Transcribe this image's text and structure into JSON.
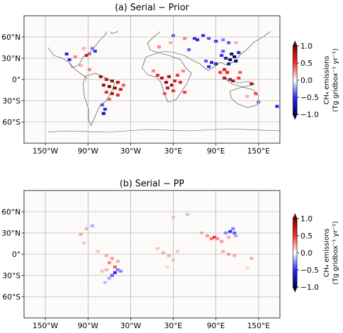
{
  "chart_data": [
    {
      "type": "heatmap",
      "title": "(a) Serial − Prior",
      "projection": "equirectangular",
      "x_ticks": [
        -150,
        -90,
        -30,
        30,
        90,
        150
      ],
      "x_tick_labels": [
        "150°W",
        "90°W",
        "30°W",
        "30°E",
        "90°E",
        "150°E"
      ],
      "y_ticks": [
        60,
        30,
        0,
        -30,
        -60
      ],
      "y_tick_labels": [
        "60°N",
        "30°N",
        "0°",
        "30°S",
        "60°S"
      ],
      "xlim": [
        -180,
        180
      ],
      "ylim": [
        -90,
        90
      ],
      "grid": true,
      "colorbar": {
        "label": "CH₄ emissions",
        "units": "(Tg gridbox⁻¹ yr⁻¹)",
        "range": [
          -1.0,
          1.0
        ],
        "ticks": [
          1.0,
          0.5,
          0.0,
          -0.5,
          -1.0
        ],
        "tick_labels": [
          "1.0",
          "0.5",
          "0.0",
          "−0.5",
          "−1.0"
        ],
        "extend": "both",
        "cmap": "seismic"
      },
      "cells": [
        {
          "lon": -120,
          "lat": 36,
          "value": -0.6
        },
        {
          "lon": -116,
          "lat": 28,
          "value": -0.5
        },
        {
          "lon": -108,
          "lat": 32,
          "value": 0.3
        },
        {
          "lon": -92,
          "lat": 34,
          "value": 0.7
        },
        {
          "lon": -88,
          "lat": 36,
          "value": 0.4
        },
        {
          "lon": -80,
          "lat": 40,
          "value": -0.5
        },
        {
          "lon": -84,
          "lat": 44,
          "value": -0.3
        },
        {
          "lon": -96,
          "lat": 44,
          "value": 0.2
        },
        {
          "lon": -100,
          "lat": 20,
          "value": 0.2
        },
        {
          "lon": -88,
          "lat": 14,
          "value": 0.3
        },
        {
          "lon": -72,
          "lat": 4,
          "value": 0.8
        },
        {
          "lon": -64,
          "lat": 0,
          "value": 0.9
        },
        {
          "lon": -56,
          "lat": -2,
          "value": 0.9
        },
        {
          "lon": -48,
          "lat": -4,
          "value": 0.8
        },
        {
          "lon": -68,
          "lat": -8,
          "value": 0.9
        },
        {
          "lon": -60,
          "lat": -10,
          "value": 1.0
        },
        {
          "lon": -52,
          "lat": -12,
          "value": 0.9
        },
        {
          "lon": -44,
          "lat": -14,
          "value": 0.7
        },
        {
          "lon": -64,
          "lat": -18,
          "value": 0.6
        },
        {
          "lon": -56,
          "lat": -20,
          "value": 0.8
        },
        {
          "lon": -48,
          "lat": -22,
          "value": 0.6
        },
        {
          "lon": -60,
          "lat": -28,
          "value": 0.4
        },
        {
          "lon": -70,
          "lat": -36,
          "value": -0.4
        },
        {
          "lon": -66,
          "lat": -42,
          "value": -0.6
        },
        {
          "lon": -68,
          "lat": -48,
          "value": -0.8
        },
        {
          "lon": -40,
          "lat": -8,
          "value": 0.4
        },
        {
          "lon": 8,
          "lat": 6,
          "value": 0.6
        },
        {
          "lon": 14,
          "lat": 2,
          "value": 0.8
        },
        {
          "lon": 20,
          "lat": -4,
          "value": 0.9
        },
        {
          "lon": 24,
          "lat": 4,
          "value": 0.8
        },
        {
          "lon": 28,
          "lat": -8,
          "value": 0.9
        },
        {
          "lon": 22,
          "lat": -12,
          "value": 0.8
        },
        {
          "lon": 32,
          "lat": -2,
          "value": 0.7
        },
        {
          "lon": 30,
          "lat": -16,
          "value": 0.6
        },
        {
          "lon": 36,
          "lat": 6,
          "value": 0.5
        },
        {
          "lon": 40,
          "lat": -4,
          "value": 0.6
        },
        {
          "lon": 18,
          "lat": -20,
          "value": 0.4
        },
        {
          "lon": 2,
          "lat": 12,
          "value": 0.3
        },
        {
          "lon": 44,
          "lat": 12,
          "value": 0.3
        },
        {
          "lon": 46,
          "lat": -18,
          "value": 0.5
        },
        {
          "lon": 10,
          "lat": 46,
          "value": 0.3
        },
        {
          "lon": 26,
          "lat": 52,
          "value": 0.2
        },
        {
          "lon": 30,
          "lat": 62,
          "value": -0.4
        },
        {
          "lon": 46,
          "lat": 58,
          "value": 0.3
        },
        {
          "lon": 52,
          "lat": 42,
          "value": -0.4
        },
        {
          "lon": 60,
          "lat": 58,
          "value": -0.5
        },
        {
          "lon": 64,
          "lat": 56,
          "value": -0.6
        },
        {
          "lon": 72,
          "lat": 62,
          "value": -0.5
        },
        {
          "lon": 80,
          "lat": 58,
          "value": -0.4
        },
        {
          "lon": 90,
          "lat": 54,
          "value": -0.5
        },
        {
          "lon": 100,
          "lat": 56,
          "value": -0.3
        },
        {
          "lon": 108,
          "lat": 52,
          "value": -0.4
        },
        {
          "lon": 118,
          "lat": 52,
          "value": 0.2
        },
        {
          "lon": 76,
          "lat": 26,
          "value": -0.4
        },
        {
          "lon": 84,
          "lat": 24,
          "value": -0.6
        },
        {
          "lon": 90,
          "lat": 22,
          "value": -0.8
        },
        {
          "lon": 80,
          "lat": 18,
          "value": -0.5
        },
        {
          "lon": 98,
          "lat": 34,
          "value": -0.5
        },
        {
          "lon": 104,
          "lat": 30,
          "value": -0.9
        },
        {
          "lon": 110,
          "lat": 28,
          "value": -1.0
        },
        {
          "lon": 116,
          "lat": 32,
          "value": -1.0
        },
        {
          "lon": 112,
          "lat": 36,
          "value": -0.8
        },
        {
          "lon": 118,
          "lat": 26,
          "value": -0.9
        },
        {
          "lon": 108,
          "lat": 22,
          "value": -0.8
        },
        {
          "lon": 122,
          "lat": 38,
          "value": -0.6
        },
        {
          "lon": 100,
          "lat": 40,
          "value": -0.4
        },
        {
          "lon": 96,
          "lat": 10,
          "value": 0.5
        },
        {
          "lon": 102,
          "lat": 14,
          "value": 0.7
        },
        {
          "lon": 106,
          "lat": 10,
          "value": 0.6
        },
        {
          "lon": 102,
          "lat": 2,
          "value": 0.8
        },
        {
          "lon": 110,
          "lat": 0,
          "value": 0.9
        },
        {
          "lon": 114,
          "lat": -2,
          "value": 0.8
        },
        {
          "lon": 122,
          "lat": 2,
          "value": 0.5
        },
        {
          "lon": 124,
          "lat": 10,
          "value": 0.4
        },
        {
          "lon": 140,
          "lat": -6,
          "value": 0.7
        },
        {
          "lon": 146,
          "lat": -20,
          "value": 0.4
        },
        {
          "lon": 134,
          "lat": -24,
          "value": 0.2
        },
        {
          "lon": 150,
          "lat": -32,
          "value": -0.3
        },
        {
          "lon": 176,
          "lat": -38,
          "value": -0.6
        }
      ]
    },
    {
      "type": "heatmap",
      "title": "(b) Serial − PP",
      "projection": "equirectangular",
      "x_ticks": [
        -150,
        -90,
        -30,
        30,
        90,
        150
      ],
      "x_tick_labels": [
        "150°W",
        "90°W",
        "30°W",
        "30°E",
        "90°E",
        "150°E"
      ],
      "y_ticks": [
        60,
        30,
        0,
        -30,
        -60
      ],
      "y_tick_labels": [
        "60°N",
        "30°N",
        "0°",
        "30°S",
        "60°S"
      ],
      "xlim": [
        -180,
        180
      ],
      "ylim": [
        -90,
        90
      ],
      "grid": true,
      "colorbar": {
        "label": "CH₄ emissions",
        "units": "(Tg gridbox⁻¹ yr⁻¹)",
        "range": [
          -1.0,
          1.0
        ],
        "ticks": [
          1.0,
          0.5,
          0.0,
          -0.5,
          -1.0
        ],
        "tick_labels": [
          "1.0",
          "0.5",
          "0.0",
          "−0.5",
          "−1.0"
        ],
        "extend": "both",
        "cmap": "seismic"
      },
      "cells": [
        {
          "lon": -92,
          "lat": 36,
          "value": 0.2
        },
        {
          "lon": -84,
          "lat": 40,
          "value": -0.2
        },
        {
          "lon": -100,
          "lat": 28,
          "value": 0.2
        },
        {
          "lon": -96,
          "lat": 16,
          "value": 0.15
        },
        {
          "lon": -76,
          "lat": 4,
          "value": 0.15
        },
        {
          "lon": -64,
          "lat": -2,
          "value": 0.2
        },
        {
          "lon": -56,
          "lat": -6,
          "value": 0.25
        },
        {
          "lon": -48,
          "lat": -10,
          "value": 0.2
        },
        {
          "lon": -60,
          "lat": -12,
          "value": 0.3
        },
        {
          "lon": -52,
          "lat": -18,
          "value": 0.4
        },
        {
          "lon": -48,
          "lat": -22,
          "value": -0.3
        },
        {
          "lon": -52,
          "lat": -26,
          "value": -0.5
        },
        {
          "lon": -56,
          "lat": -30,
          "value": -0.4
        },
        {
          "lon": -44,
          "lat": -24,
          "value": -0.3
        },
        {
          "lon": -60,
          "lat": -34,
          "value": -0.2
        },
        {
          "lon": -66,
          "lat": -40,
          "value": -0.15
        },
        {
          "lon": -70,
          "lat": -24,
          "value": 0.15
        },
        {
          "lon": -64,
          "lat": -22,
          "value": 0.2
        },
        {
          "lon": 8,
          "lat": 8,
          "value": 0.15
        },
        {
          "lon": 16,
          "lat": 2,
          "value": 0.2
        },
        {
          "lon": 24,
          "lat": -2,
          "value": 0.2
        },
        {
          "lon": 30,
          "lat": -8,
          "value": 0.15
        },
        {
          "lon": 36,
          "lat": 4,
          "value": 0.15
        },
        {
          "lon": 22,
          "lat": -18,
          "value": 0.1
        },
        {
          "lon": 30,
          "lat": 52,
          "value": 0.15
        },
        {
          "lon": 50,
          "lat": 56,
          "value": -0.15
        },
        {
          "lon": 70,
          "lat": 30,
          "value": 0.2
        },
        {
          "lon": 78,
          "lat": 26,
          "value": 0.25
        },
        {
          "lon": 84,
          "lat": 22,
          "value": 0.35
        },
        {
          "lon": 88,
          "lat": 24,
          "value": 0.5
        },
        {
          "lon": 92,
          "lat": 22,
          "value": 0.3
        },
        {
          "lon": 98,
          "lat": 18,
          "value": 0.25
        },
        {
          "lon": 104,
          "lat": 30,
          "value": -0.3
        },
        {
          "lon": 110,
          "lat": 32,
          "value": -0.5
        },
        {
          "lon": 116,
          "lat": 30,
          "value": -0.4
        },
        {
          "lon": 114,
          "lat": 36,
          "value": -0.3
        },
        {
          "lon": 118,
          "lat": 26,
          "value": -0.2
        },
        {
          "lon": 108,
          "lat": 24,
          "value": 0.2
        },
        {
          "lon": 100,
          "lat": 4,
          "value": 0.2
        },
        {
          "lon": 108,
          "lat": 0,
          "value": 0.25
        },
        {
          "lon": 116,
          "lat": -2,
          "value": 0.2
        },
        {
          "lon": 140,
          "lat": -6,
          "value": 0.2
        },
        {
          "lon": 134,
          "lat": -20,
          "value": 0.1
        }
      ]
    }
  ]
}
